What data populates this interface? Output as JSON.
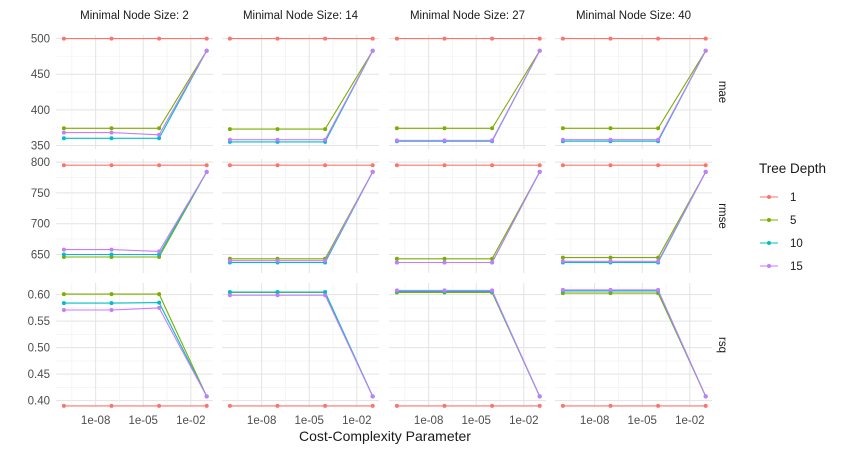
{
  "chart_data": {
    "type": "line",
    "xlabel": "Cost-Complexity Parameter",
    "x_scale": "log10",
    "x": [
      1e-10,
      1e-07,
      0.0001,
      0.1
    ],
    "x_ticks": [
      {
        "value": 1e-08,
        "label": "1e-08"
      },
      {
        "value": 1e-05,
        "label": "1e-05"
      },
      {
        "value": 0.01,
        "label": "1e-02"
      }
    ],
    "columns": [
      {
        "label": "Minimal Node Size: 2"
      },
      {
        "label": "Minimal Node Size: 14"
      },
      {
        "label": "Minimal Node Size: 27"
      },
      {
        "label": "Minimal Node Size: 40"
      }
    ],
    "rows": [
      {
        "label": "mae",
        "ylim": [
          345,
          505
        ],
        "ticks": [
          {
            "value": 350,
            "label": "350"
          },
          {
            "value": 400,
            "label": "400"
          },
          {
            "value": 450,
            "label": "450"
          },
          {
            "value": 500,
            "label": "500"
          }
        ]
      },
      {
        "label": "rmse",
        "ylim": [
          620,
          805
        ],
        "ticks": [
          {
            "value": 650,
            "label": "650"
          },
          {
            "value": 700,
            "label": "700"
          },
          {
            "value": 750,
            "label": "750"
          },
          {
            "value": 800,
            "label": "800"
          }
        ]
      },
      {
        "label": "rsq",
        "ylim": [
          0.388,
          0.622
        ],
        "ticks": [
          {
            "value": 0.4,
            "label": "0.40"
          },
          {
            "value": 0.45,
            "label": "0.45"
          },
          {
            "value": 0.5,
            "label": "0.50"
          },
          {
            "value": 0.55,
            "label": "0.55"
          },
          {
            "value": 0.6,
            "label": "0.60"
          }
        ]
      }
    ],
    "legend": {
      "title": "Tree Depth",
      "position": "right",
      "entries": [
        {
          "label": "1",
          "color": "#F8766D"
        },
        {
          "label": "5",
          "color": "#7CAE00"
        },
        {
          "label": "10",
          "color": "#00BFC4"
        },
        {
          "label": "15",
          "color": "#C77CFF"
        }
      ]
    },
    "series": [
      {
        "color": "#F8766D",
        "values": [
          [
            [
              500,
              500,
              500,
              500
            ],
            [
              795,
              795,
              795,
              795
            ],
            [
              0.39,
              0.39,
              0.39,
              0.39
            ]
          ],
          [
            [
              500,
              500,
              500,
              500
            ],
            [
              795,
              795,
              795,
              795
            ],
            [
              0.39,
              0.39,
              0.39,
              0.39
            ]
          ],
          [
            [
              500,
              500,
              500,
              500
            ],
            [
              795,
              795,
              795,
              795
            ],
            [
              0.39,
              0.39,
              0.39,
              0.39
            ]
          ],
          [
            [
              500,
              500,
              500,
              500
            ],
            [
              795,
              795,
              795,
              795
            ],
            [
              0.39,
              0.39,
              0.39,
              0.39
            ]
          ]
        ]
      },
      {
        "color": "#7CAE00",
        "values": [
          [
            [
              374,
              374,
              374,
              483
            ],
            [
              646,
              646,
              646,
              784
            ],
            [
              0.601,
              0.601,
              0.601,
              0.408
            ]
          ],
          [
            [
              373,
              373,
              373,
              483
            ],
            [
              643,
              643,
              643,
              784
            ],
            [
              0.604,
              0.604,
              0.604,
              0.408
            ]
          ],
          [
            [
              374,
              374,
              374,
              483
            ],
            [
              643,
              643,
              643,
              784
            ],
            [
              0.604,
              0.604,
              0.604,
              0.408
            ]
          ],
          [
            [
              374,
              374,
              374,
              483
            ],
            [
              645,
              645,
              645,
              784
            ],
            [
              0.603,
              0.603,
              0.603,
              0.408
            ]
          ]
        ]
      },
      {
        "color": "#00BFC4",
        "values": [
          [
            [
              360,
              360,
              360,
              483
            ],
            [
              650,
              650,
              650,
              784
            ],
            [
              0.584,
              0.584,
              0.585,
              0.408
            ]
          ],
          [
            [
              355,
              355,
              355,
              483
            ],
            [
              637,
              637,
              637,
              784
            ],
            [
              0.605,
              0.605,
              0.605,
              0.408
            ]
          ],
          [
            [
              356,
              356,
              356,
              483
            ],
            [
              637,
              637,
              637,
              784
            ],
            [
              0.606,
              0.606,
              0.606,
              0.408
            ]
          ],
          [
            [
              356,
              356,
              356,
              483
            ],
            [
              637,
              637,
              637,
              784
            ],
            [
              0.607,
              0.607,
              0.607,
              0.408
            ]
          ]
        ]
      },
      {
        "color": "#C77CFF",
        "values": [
          [
            [
              368,
              368,
              365,
              483
            ],
            [
              658,
              658,
              655,
              784
            ],
            [
              0.571,
              0.571,
              0.575,
              0.408
            ]
          ],
          [
            [
              358,
              358,
              358,
              483
            ],
            [
              640,
              640,
              640,
              784
            ],
            [
              0.599,
              0.599,
              0.599,
              0.408
            ]
          ],
          [
            [
              357,
              357,
              357,
              483
            ],
            [
              637,
              637,
              637,
              784
            ],
            [
              0.608,
              0.608,
              0.608,
              0.408
            ]
          ],
          [
            [
              358,
              358,
              358,
              483
            ],
            [
              639,
              639,
              639,
              784
            ],
            [
              0.609,
              0.609,
              0.609,
              0.408
            ]
          ]
        ]
      }
    ]
  }
}
